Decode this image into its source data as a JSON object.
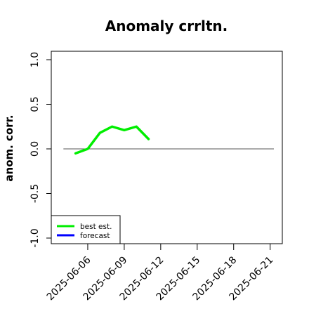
{
  "chart_data": {
    "type": "line",
    "title": "Anomaly crrltn.",
    "ylabel": "anom. corr.",
    "xlabel": "",
    "ylim": [
      -1.0,
      1.0
    ],
    "xlim": [
      "2025-06-03",
      "2025-06-22"
    ],
    "y_ticks": [
      "-1.0",
      "-0.5",
      "0.0",
      "0.5",
      "1.0"
    ],
    "x_ticks": [
      {
        "label": "2025-06-06",
        "date": "2025-06-06",
        "color": "#000000"
      },
      {
        "label": "2025-06-09",
        "date": "2025-06-09",
        "color": "#000000"
      },
      {
        "label": "2025-06-12",
        "date": "2025-06-12",
        "color": "#228b22"
      },
      {
        "label": "2025-06-15",
        "date": "2025-06-15",
        "color": "#000000"
      },
      {
        "label": "2025-06-18",
        "date": "2025-06-18",
        "color": "#000000"
      },
      {
        "label": "2025-06-21",
        "date": "2025-06-21",
        "color": "#000000"
      }
    ],
    "reference_line": {
      "y": 0.0,
      "from": "2025-06-04",
      "to": "2025-06-22",
      "color": "#555555"
    },
    "series": [
      {
        "name": "best est.",
        "color": "#00ee00",
        "x": [
          "2025-06-05",
          "2025-06-06",
          "2025-06-07",
          "2025-06-08",
          "2025-06-09",
          "2025-06-10",
          "2025-06-11"
        ],
        "y": [
          -0.05,
          0.0,
          0.18,
          0.25,
          0.21,
          0.25,
          0.11
        ]
      },
      {
        "name": "forecast",
        "color": "#0000ff",
        "x": [],
        "y": []
      }
    ],
    "legend": "bottom-left",
    "grid": false
  }
}
